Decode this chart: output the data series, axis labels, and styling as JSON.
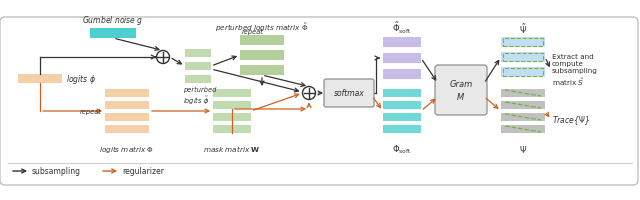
{
  "fig_width": 6.4,
  "fig_height": 2.01,
  "dpi": 100,
  "bg_color": "#ffffff",
  "colors": {
    "teal_block": "#4ecfcf",
    "green_light": "#c2dab0",
    "green_medium": "#b5cf9a",
    "peach": "#f5cfa8",
    "purple_light": "#c8bde8",
    "blue_light": "#c0dff5",
    "gray_block": "#c0c0c0",
    "orange_arrow": "#d06020",
    "dashed_green": "#7ab040",
    "text_color": "#333333",
    "box_fill": "#e8e8e8",
    "box_edge": "#909090"
  },
  "elements": {
    "gumbel_noise_label": "Gumbel noise $\\mathit{g}$",
    "logits_phi_label": "logits $\\phi$",
    "repeat_label1": "repeat",
    "repeat_label2": "repeat",
    "perturbed_logits_label": "perturbed\nlogits $\\tilde{\\phi}$",
    "perturbed_matrix_label": "perturbed logits matrix $\\tilde{\\Phi}$",
    "mask_matrix_label": "mask matrix $\\mathbf{W}$",
    "logits_matrix_label": "logits matrix $\\Phi$",
    "softmax_label": "softmax",
    "phi_soft_tilde_label": "$\\tilde{\\Phi}_{\\mathrm{soft}}$",
    "phi_soft_label": "$\\Phi_{\\mathrm{soft}}$",
    "gram_label": "Gram\n$M$",
    "psi_tilde_label": "$\\tilde{\\Psi}$",
    "psi_label": "$\\Psi$",
    "extract_label": "Extract and\ncompute\nsubsampling\nmatrix $\\hat{S}$",
    "trace_label": "Trace{$\\Psi$}",
    "subsampling_label": "subsampling",
    "regularizer_label": "regularizer"
  }
}
